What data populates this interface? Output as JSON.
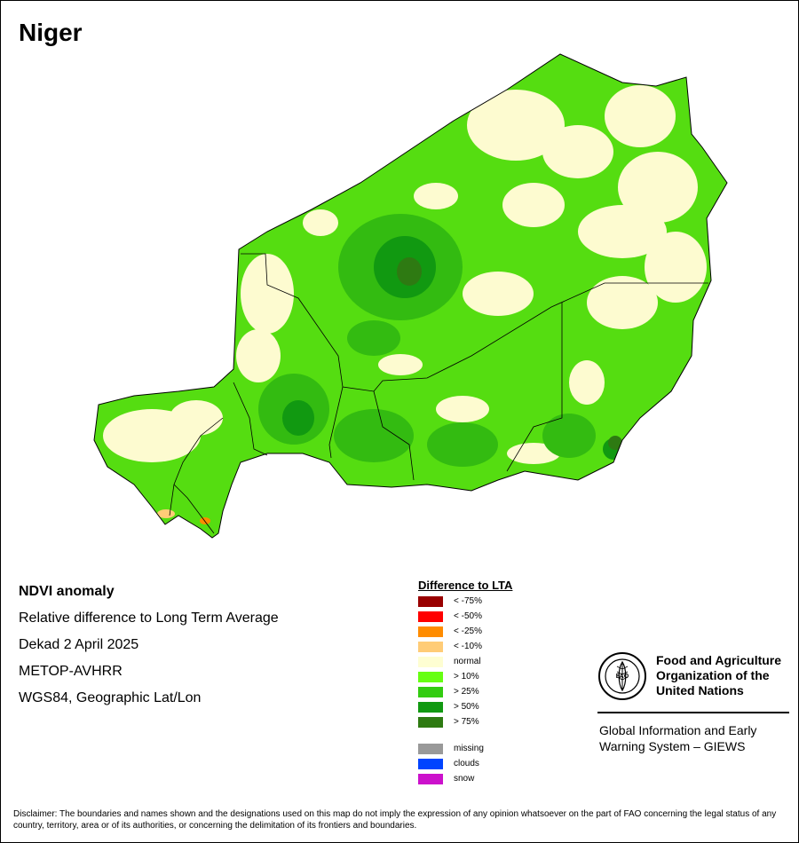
{
  "map": {
    "title": "Niger",
    "colors": {
      "normal": "#fdfbd0",
      "gt10": "#55dd11",
      "gt25": "#33bb11",
      "gt50": "#119911",
      "gt75": "#2e7a12",
      "border": "#000000"
    }
  },
  "info": {
    "product": "NDVI anomaly",
    "description": "Relative difference to Long Term Average",
    "period": "Dekad 2 April 2025",
    "sensor": "METOP-AVHRR",
    "projection": "WGS84, Geographic Lat/Lon"
  },
  "legend": {
    "title": "Difference to LTA",
    "classes": [
      {
        "label": "< -75%",
        "color": "#990000"
      },
      {
        "label": "< -50%",
        "color": "#ff0000"
      },
      {
        "label": "< -25%",
        "color": "#ff8c00"
      },
      {
        "label": "< -10%",
        "color": "#ffcc77"
      },
      {
        "label": "normal",
        "color": "#fefed2"
      },
      {
        "label": "> 10%",
        "color": "#66ff11"
      },
      {
        "label": "> 25%",
        "color": "#33cc11"
      },
      {
        "label": "> 50%",
        "color": "#119911"
      },
      {
        "label": "> 75%",
        "color": "#2e7a12"
      }
    ],
    "extra": [
      {
        "label": "missing",
        "color": "#999999"
      },
      {
        "label": "clouds",
        "color": "#0044ff"
      },
      {
        "label": "snow",
        "color": "#cc11cc"
      }
    ]
  },
  "org": {
    "logo_text": "FAO",
    "name_line1": "Food and Agriculture",
    "name_line2": "Organization of the",
    "name_line3": "United Nations",
    "system_line1": "Global Information and Early",
    "system_line2": "Warning System – GIEWS"
  },
  "disclaimer": "Disclaimer: The boundaries and names shown and the designations used on this map do not imply the expression of any opinion whatsoever on the part of FAO concerning the legal status of any country, territory, area or of its authorities, or concerning the delimitation of its frontiers and boundaries."
}
